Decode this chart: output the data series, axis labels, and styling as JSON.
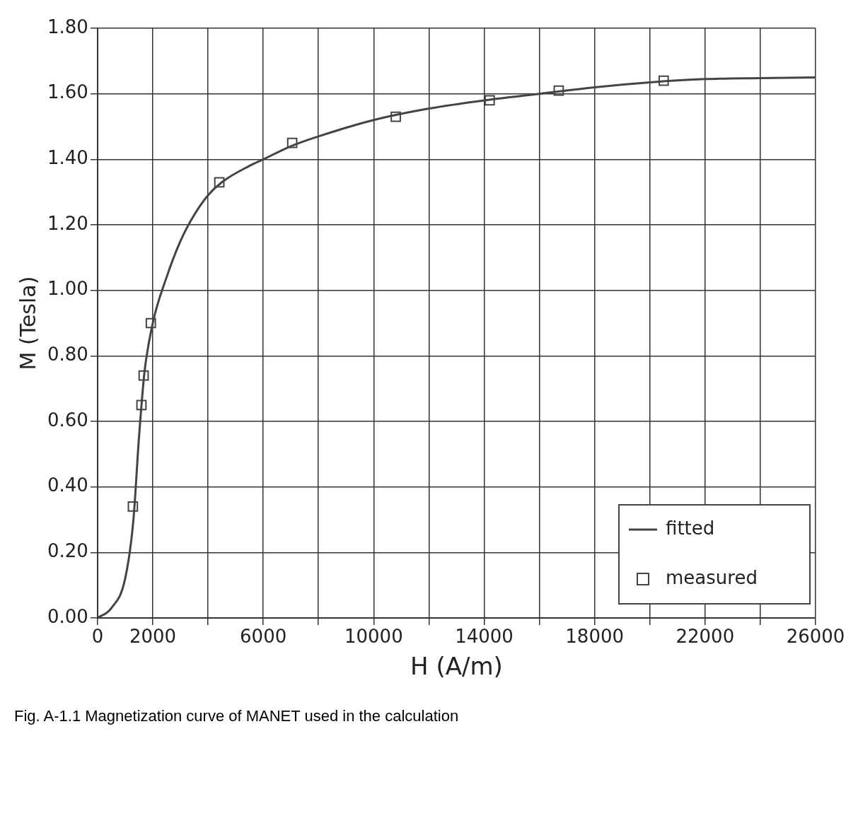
{
  "chart_data": {
    "type": "line",
    "xlabel": "H (A/m)",
    "ylabel": "M (Tesla)",
    "xlim": [
      0,
      26000
    ],
    "ylim": [
      0,
      1.8
    ],
    "xticks": [
      0,
      {
        "value": 2000,
        "label": "2000"
      },
      {
        "value": 4000,
        "label": null
      },
      6000,
      {
        "value": 8000,
        "label": null
      },
      10000,
      {
        "value": 12000,
        "label": null
      },
      14000,
      {
        "value": 16000,
        "label": null
      },
      18000,
      {
        "value": 20000,
        "label": null
      },
      22000,
      {
        "value": 24000,
        "label": null
      },
      26000
    ],
    "yticks": [
      {
        "value": 0,
        "label": "0.00"
      },
      {
        "value": 0.2,
        "label": "0.20"
      },
      {
        "value": 0.4,
        "label": "0.40"
      },
      {
        "value": 0.6,
        "label": "0.60"
      },
      {
        "value": 0.8,
        "label": "0.80"
      },
      {
        "value": 1.0,
        "label": "1.00"
      },
      {
        "value": 1.2,
        "label": "1.20"
      },
      {
        "value": 1.4,
        "label": "1.40"
      },
      {
        "value": 1.6,
        "label": "1.60"
      },
      {
        "value": 1.8,
        "label": "1.80"
      }
    ],
    "grid": true,
    "legend": "bottom right",
    "series": [
      {
        "name": "fitted",
        "color": "#444444",
        "marker": "none",
        "x": [
          0,
          500,
          1000,
          1300,
          1500,
          1700,
          2000,
          2500,
          3000,
          3500,
          4000,
          4500,
          5500,
          6000,
          7000,
          8000,
          10000,
          12000,
          14000,
          16000,
          18000,
          20000,
          22000,
          24000,
          26000
        ],
        "values": [
          0,
          0.03,
          0.12,
          0.3,
          0.55,
          0.75,
          0.9,
          1.04,
          1.15,
          1.23,
          1.29,
          1.33,
          1.38,
          1.4,
          1.44,
          1.47,
          1.52,
          1.555,
          1.58,
          1.6,
          1.62,
          1.635,
          1.645,
          1.648,
          1.65
        ]
      },
      {
        "name": "measured",
        "type": "scatter",
        "color": "#444444",
        "marker": "square",
        "x": [
          1280,
          1590,
          1670,
          1930,
          4410,
          7050,
          10800,
          14200,
          16700,
          20500
        ],
        "values": [
          0.34,
          0.65,
          0.74,
          0.9,
          1.33,
          1.45,
          1.53,
          1.58,
          1.61,
          1.64
        ]
      }
    ],
    "annotations": [
      "Fig. A-1.1  Magnetization curve of MANET used in the calculation"
    ]
  }
}
